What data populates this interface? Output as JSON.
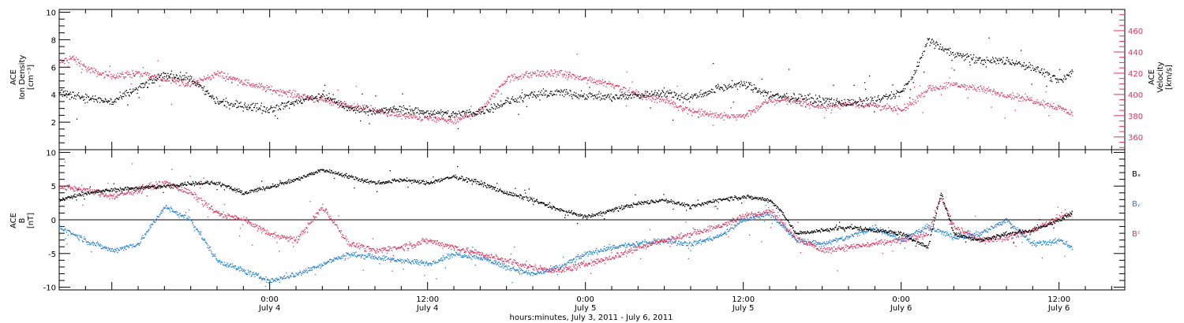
{
  "colors": {
    "black_series": "#000000",
    "velocity": "#e0325a",
    "bx": "#000000",
    "by": "#1c7fd6",
    "bz": "#e0325a"
  },
  "xaxis": {
    "title": "hours:minutes, July  3, 2011 - July  6, 2011",
    "range_hours": [
      0,
      81
    ],
    "ticks": [
      {
        "hour": 16,
        "time": "0:00",
        "date": "July 4"
      },
      {
        "hour": 28,
        "time": "12:00",
        "date": "July 4"
      },
      {
        "hour": 40,
        "time": "0:00",
        "date": "July 5"
      },
      {
        "hour": 52,
        "time": "12:00",
        "date": "July 5"
      },
      {
        "hour": 64,
        "time": "0:00",
        "date": "July 6"
      },
      {
        "hour": 76,
        "time": "12:00",
        "date": "July 6"
      }
    ]
  },
  "chart_data": [
    {
      "type": "scatter",
      "panel": "top",
      "ylabel_lines": [
        "ACE",
        "Ion Density",
        "[cm⁻³]"
      ],
      "ylim": [
        0,
        10.2
      ],
      "yticks": [
        2,
        4,
        6,
        8,
        10
      ],
      "y2label_lines": [
        "ACE",
        "Velocity",
        "[km/s]"
      ],
      "y2lim": [
        348,
        480
      ],
      "y2ticks": [
        360,
        380,
        400,
        420,
        440,
        460
      ],
      "series": [
        {
          "axis": "left",
          "x": [
            0,
            2,
            4,
            6,
            8,
            10,
            12,
            14,
            16,
            18,
            20,
            22,
            24,
            26,
            28,
            30,
            32,
            34,
            36,
            38,
            40,
            42,
            44,
            46,
            48,
            50,
            52,
            54,
            56,
            58,
            60,
            62,
            64,
            65,
            66,
            68,
            70,
            72,
            74,
            76,
            77
          ],
          "y": [
            4.2,
            3.8,
            3.5,
            4.5,
            5.5,
            5.2,
            3.5,
            3.2,
            3.0,
            3.5,
            4.0,
            3.0,
            2.8,
            3.0,
            2.7,
            2.6,
            2.8,
            3.5,
            4.0,
            4.2,
            4.0,
            3.8,
            4.0,
            4.2,
            3.8,
            4.5,
            4.8,
            4.0,
            3.8,
            3.6,
            3.4,
            3.6,
            4.2,
            5.5,
            8.0,
            7.0,
            6.5,
            6.5,
            6.0,
            5.0,
            5.7
          ]
        },
        {
          "axis": "right",
          "x": [
            0,
            1,
            2,
            3,
            4,
            6,
            8,
            10,
            12,
            14,
            16,
            18,
            20,
            22,
            24,
            26,
            28,
            30,
            32,
            34,
            36,
            38,
            40,
            42,
            44,
            46,
            48,
            50,
            52,
            54,
            56,
            58,
            60,
            62,
            64,
            66,
            68,
            70,
            72,
            74,
            76,
            77
          ],
          "y": [
            430,
            435,
            425,
            420,
            418,
            420,
            415,
            410,
            420,
            412,
            405,
            400,
            395,
            390,
            385,
            380,
            378,
            375,
            385,
            415,
            420,
            420,
            415,
            410,
            400,
            395,
            385,
            380,
            380,
            395,
            395,
            388,
            392,
            390,
            385,
            405,
            410,
            405,
            400,
            395,
            388,
            382
          ]
        }
      ]
    },
    {
      "type": "scatter",
      "panel": "bottom",
      "ylabel_lines": [
        "ACE",
        "B",
        "[nT]"
      ],
      "ylim": [
        -10.4,
        10.4
      ],
      "yticks": [
        -10,
        -5,
        0,
        5,
        10
      ],
      "legend": [
        "Bₓ",
        "Bᵧ",
        "Bᶻ"
      ],
      "legend_placement": "right",
      "series": [
        {
          "name": "Bₓ",
          "x": [
            0,
            2,
            4,
            6,
            8,
            10,
            12,
            14,
            16,
            18,
            20,
            22,
            24,
            26,
            28,
            30,
            32,
            34,
            36,
            38,
            40,
            42,
            44,
            46,
            48,
            50,
            52,
            54,
            55,
            56,
            58,
            60,
            62,
            64,
            66,
            67,
            68,
            70,
            72,
            74,
            76,
            77
          ],
          "y": [
            3.0,
            4.0,
            4.5,
            4.8,
            5.0,
            5.5,
            5.5,
            4.0,
            5.0,
            6.0,
            7.5,
            6.5,
            5.5,
            6.0,
            5.5,
            6.5,
            5.5,
            4.0,
            3.0,
            1.5,
            0.5,
            1.5,
            2.5,
            3.0,
            2.0,
            3.0,
            3.5,
            3.0,
            1.0,
            -2.0,
            -1.5,
            -1.0,
            -1.5,
            -2.0,
            -4.0,
            4.0,
            -2.0,
            -3.0,
            -2.0,
            -1.5,
            0.0,
            1.0
          ]
        },
        {
          "name": "Bᵧ",
          "x": [
            0,
            2,
            4,
            6,
            8,
            10,
            12,
            14,
            16,
            18,
            20,
            22,
            24,
            26,
            28,
            30,
            32,
            34,
            36,
            38,
            40,
            42,
            44,
            46,
            48,
            50,
            52,
            54,
            56,
            58,
            60,
            62,
            64,
            66,
            68,
            70,
            72,
            74,
            76,
            77
          ],
          "y": [
            -1.0,
            -3.0,
            -4.5,
            -3.5,
            2.0,
            0.0,
            -6.0,
            -7.5,
            -9.0,
            -8.0,
            -6.5,
            -5.0,
            -5.5,
            -6.0,
            -6.5,
            -5.0,
            -5.5,
            -7.0,
            -8.0,
            -7.0,
            -5.0,
            -4.0,
            -3.5,
            -3.0,
            -3.5,
            -2.5,
            0.0,
            1.0,
            -3.0,
            -3.5,
            -2.5,
            -1.0,
            -3.0,
            -1.0,
            -2.5,
            -2.0,
            0.0,
            -3.5,
            -3.0,
            -4.0
          ]
        },
        {
          "name": "Bᶻ",
          "x": [
            0,
            2,
            4,
            6,
            8,
            10,
            12,
            14,
            16,
            18,
            20,
            22,
            24,
            26,
            28,
            30,
            32,
            34,
            36,
            38,
            40,
            42,
            44,
            46,
            48,
            50,
            52,
            54,
            56,
            58,
            60,
            62,
            64,
            66,
            67,
            68,
            70,
            72,
            74,
            76,
            77
          ],
          "y": [
            5.0,
            4.5,
            3.5,
            4.5,
            5.5,
            4.0,
            1.0,
            0.0,
            -2.0,
            -3.0,
            2.0,
            -3.5,
            -4.5,
            -4.0,
            -3.0,
            -4.0,
            -5.0,
            -6.0,
            -7.0,
            -7.5,
            -6.5,
            -5.5,
            -4.0,
            -3.0,
            -2.0,
            -1.0,
            0.5,
            1.5,
            -2.5,
            -4.5,
            -4.0,
            -3.5,
            -3.0,
            -2.0,
            3.5,
            -1.0,
            -3.0,
            -2.5,
            -1.5,
            0.5,
            1.0
          ]
        }
      ]
    }
  ]
}
